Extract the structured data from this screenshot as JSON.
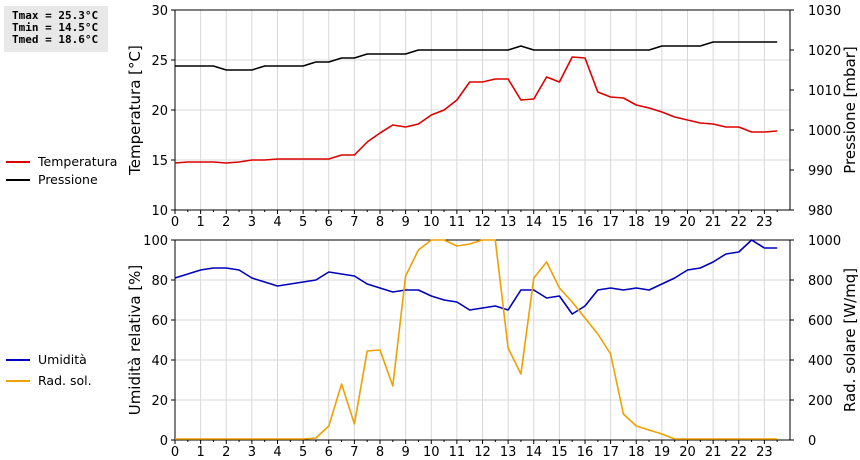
{
  "stats": {
    "tmax": "Tmax = 25.3°C",
    "tmin": "Tmin = 14.5°C",
    "tmed": "Tmed = 18.6°C"
  },
  "chart_data": [
    {
      "type": "line",
      "xlim": [
        0,
        24
      ],
      "x_ticks": [
        "0",
        "1",
        "2",
        "3",
        "4",
        "5",
        "6",
        "7",
        "8",
        "9",
        "10",
        "11",
        "12",
        "13",
        "14",
        "15",
        "16",
        "17",
        "18",
        "19",
        "20",
        "21",
        "22",
        "23"
      ],
      "ylabel": "Temperatura [°C]",
      "ylim": [
        10,
        30
      ],
      "y_ticks": [
        "10",
        "15",
        "20",
        "25",
        "30"
      ],
      "y2label": "Pressione [mbar]",
      "y2lim": [
        980,
        1030
      ],
      "y2_ticks": [
        "980",
        "990",
        "1000",
        "1010",
        "1020",
        "1030"
      ],
      "grid": true,
      "legend_position": "left",
      "series": [
        {
          "name": "Temperatura",
          "axis": "left",
          "color": "#dd0000",
          "x": [
            0,
            0.5,
            1,
            1.5,
            2,
            2.5,
            3,
            3.5,
            4,
            4.5,
            5,
            5.5,
            6,
            6.5,
            7,
            7.5,
            8,
            8.5,
            9,
            9.5,
            10,
            10.5,
            11,
            11.5,
            12,
            12.5,
            13,
            13.5,
            14,
            14.5,
            15,
            15.5,
            16,
            16.5,
            17,
            17.5,
            18,
            18.5,
            19,
            19.5,
            20,
            20.5,
            21,
            21.5,
            22,
            22.5,
            23,
            23.5
          ],
          "values": [
            14.7,
            14.8,
            14.8,
            14.8,
            14.7,
            14.8,
            15.0,
            15.0,
            15.1,
            15.1,
            15.1,
            15.1,
            15.1,
            15.5,
            15.5,
            16.8,
            17.7,
            18.5,
            18.3,
            18.6,
            19.5,
            20.0,
            21.0,
            22.8,
            22.8,
            23.1,
            23.1,
            21.0,
            21.1,
            23.3,
            22.8,
            25.3,
            25.2,
            21.8,
            21.3,
            21.2,
            20.5,
            20.2,
            19.8,
            19.3,
            19.0,
            18.7,
            18.6,
            18.3,
            18.3,
            17.8,
            17.8,
            17.9
          ]
        },
        {
          "name": "Pressione",
          "axis": "right",
          "color": "#000000",
          "x": [
            0,
            0.5,
            1,
            1.5,
            2,
            2.5,
            3,
            3.5,
            4,
            4.5,
            5,
            5.5,
            6,
            6.5,
            7,
            7.5,
            8,
            8.5,
            9,
            9.5,
            10,
            10.5,
            11,
            11.5,
            12,
            12.5,
            13,
            13.5,
            14,
            14.5,
            15,
            15.5,
            16,
            16.5,
            17,
            17.5,
            18,
            18.5,
            19,
            19.5,
            20,
            20.5,
            21,
            21.5,
            22,
            22.5,
            23,
            23.5
          ],
          "values": [
            1016,
            1016,
            1016,
            1016,
            1015,
            1015,
            1015,
            1016,
            1016,
            1016,
            1016,
            1017,
            1017,
            1018,
            1018,
            1019,
            1019,
            1019,
            1019,
            1020,
            1020,
            1020,
            1020,
            1020,
            1020,
            1020,
            1020,
            1021,
            1020,
            1020,
            1020,
            1020,
            1020,
            1020,
            1020,
            1020,
            1020,
            1020,
            1021,
            1021,
            1021,
            1021,
            1022,
            1022,
            1022,
            1022,
            1022,
            1022
          ]
        }
      ]
    },
    {
      "type": "line",
      "xlim": [
        0,
        24
      ],
      "x_ticks": [
        "0",
        "1",
        "2",
        "3",
        "4",
        "5",
        "6",
        "7",
        "8",
        "9",
        "10",
        "11",
        "12",
        "13",
        "14",
        "15",
        "16",
        "17",
        "18",
        "19",
        "20",
        "21",
        "22",
        "23"
      ],
      "ylabel": "Umidità relativa [%]",
      "ylim": [
        0,
        100
      ],
      "y_ticks": [
        "0",
        "20",
        "40",
        "60",
        "80",
        "100"
      ],
      "y2label": "Rad. solare [W/mq]",
      "y2lim": [
        0,
        1000
      ],
      "y2_ticks": [
        "0",
        "200",
        "400",
        "600",
        "800",
        "1000"
      ],
      "grid": true,
      "legend_position": "left",
      "series": [
        {
          "name": "Umidità",
          "axis": "left",
          "color": "#0000bb",
          "x": [
            0,
            0.5,
            1,
            1.5,
            2,
            2.5,
            3,
            3.5,
            4,
            4.5,
            5,
            5.5,
            6,
            6.5,
            7,
            7.5,
            8,
            8.5,
            9,
            9.5,
            10,
            10.5,
            11,
            11.5,
            12,
            12.5,
            13,
            13.5,
            14,
            14.5,
            15,
            15.5,
            16,
            16.5,
            17,
            17.5,
            18,
            18.5,
            19,
            19.5,
            20,
            20.5,
            21,
            21.5,
            22,
            22.5,
            23,
            23.5
          ],
          "values": [
            81,
            83,
            85,
            86,
            86,
            85,
            81,
            79,
            77,
            78,
            79,
            80,
            84,
            83,
            82,
            78,
            76,
            74,
            75,
            75,
            72,
            70,
            69,
            65,
            66,
            67,
            65,
            75,
            75,
            71,
            72,
            63,
            67,
            75,
            76,
            75,
            76,
            75,
            78,
            81,
            85,
            86,
            89,
            93,
            94,
            100,
            96,
            96
          ]
        },
        {
          "name": "Rad. sol.",
          "axis": "right",
          "color": "#f0a000",
          "x": [
            0,
            0.5,
            1,
            1.5,
            2,
            2.5,
            3,
            3.5,
            4,
            4.5,
            5,
            5.5,
            6,
            6.5,
            7,
            7.5,
            8,
            8.5,
            9,
            9.5,
            10,
            10.5,
            11,
            11.5,
            12,
            12.5,
            13,
            13.5,
            14,
            14.5,
            15,
            15.5,
            16,
            16.5,
            17,
            17.5,
            18,
            18.5,
            19,
            19.5,
            20,
            20.5,
            21,
            21.5,
            22,
            22.5,
            23,
            23.5
          ],
          "values": [
            5,
            5,
            5,
            5,
            5,
            5,
            5,
            5,
            5,
            5,
            5,
            10,
            70,
            280,
            80,
            445,
            450,
            270,
            820,
            950,
            1030,
            1040,
            970,
            980,
            1010,
            1005,
            460,
            330,
            810,
            890,
            760,
            690,
            610,
            530,
            430,
            130,
            70,
            50,
            30,
            5,
            5,
            5,
            5,
            5,
            5,
            5,
            5,
            5
          ]
        }
      ]
    }
  ]
}
